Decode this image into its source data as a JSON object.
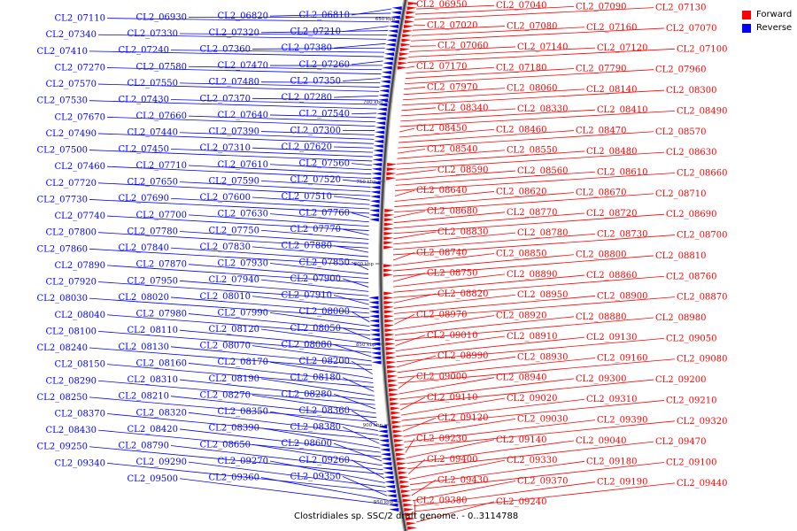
{
  "legend": {
    "forward": {
      "label": "Forward",
      "color": "#ff0000"
    },
    "reverse": {
      "label": "Reverse",
      "color": "#0000ff"
    }
  },
  "caption": "Clostridiales sp. SSC/2 draft genome. - 0..3114788",
  "ticks": [
    "650 kbp",
    "700 kbp",
    "750 kbp",
    "800 kbp",
    "850 kbp",
    "900 kbp",
    "950 kbp"
  ],
  "labels": [
    [
      "CL2_06950",
      "F"
    ],
    [
      "CL2_07040",
      "F"
    ],
    [
      "CL2_07090",
      "F"
    ],
    [
      "CL2_07130",
      "F"
    ],
    [
      "CL2_07020",
      "F"
    ],
    [
      "CL2_07080",
      "F"
    ],
    [
      "CL2_07160",
      "F"
    ],
    [
      "CL2_07070",
      "F"
    ],
    [
      "CL2_07060",
      "F"
    ],
    [
      "CL2_07140",
      "F"
    ],
    [
      "CL2_07120",
      "F"
    ],
    [
      "CL2_07100",
      "F"
    ],
    [
      "CL2_07170",
      "F"
    ],
    [
      "CL2_07180",
      "F"
    ],
    [
      "CL2_06810",
      "R"
    ],
    [
      "CL2_06820",
      "R"
    ],
    [
      "CL2_06930",
      "R"
    ],
    [
      "CL2_07110",
      "R"
    ],
    [
      "CL2_07210",
      "R"
    ],
    [
      "CL2_07320",
      "R"
    ],
    [
      "CL2_07330",
      "R"
    ],
    [
      "CL2_07340",
      "R"
    ],
    [
      "CL2_07380",
      "R"
    ],
    [
      "CL2_07360",
      "R"
    ],
    [
      "CL2_07240",
      "R"
    ],
    [
      "CL2_07410",
      "R"
    ],
    [
      "CL2_07260",
      "R"
    ],
    [
      "CL2_07470",
      "R"
    ],
    [
      "CL2_07580",
      "R"
    ],
    [
      "CL2_07270",
      "R"
    ],
    [
      "CL2_07350",
      "R"
    ],
    [
      "CL2_07480",
      "R"
    ],
    [
      "CL2_07550",
      "R"
    ],
    [
      "CL2_07570",
      "R"
    ],
    [
      "CL2_07280",
      "R"
    ],
    [
      "CL2_07370",
      "R"
    ],
    [
      "CL2_07430",
      "R"
    ],
    [
      "CL2_07530",
      "R"
    ],
    [
      "CL2_07540",
      "R"
    ],
    [
      "CL2_07640",
      "R"
    ],
    [
      "CL2_07660",
      "R"
    ],
    [
      "CL2_07670",
      "R"
    ],
    [
      "CL2_07300",
      "R"
    ],
    [
      "CL2_07390",
      "R"
    ],
    [
      "CL2_07440",
      "R"
    ],
    [
      "CL2_07490",
      "R"
    ],
    [
      "CL2_07620",
      "R"
    ],
    [
      "CL2_07310",
      "R"
    ],
    [
      "CL2_07450",
      "R"
    ],
    [
      "CL2_07500",
      "R"
    ],
    [
      "CL2_07560",
      "R"
    ],
    [
      "CL2_07610",
      "R"
    ],
    [
      "CL2_07710",
      "R"
    ],
    [
      "CL2_07460",
      "R"
    ],
    [
      "CL2_07520",
      "R"
    ],
    [
      "CL2_07590",
      "R"
    ],
    [
      "CL2_07650",
      "R"
    ],
    [
      "CL2_07720",
      "R"
    ],
    [
      "CL2_07510",
      "R"
    ],
    [
      "CL2_07600",
      "R"
    ],
    [
      "CL2_07690",
      "R"
    ],
    [
      "CL2_07730",
      "R"
    ],
    [
      "CL2_07760",
      "R"
    ],
    [
      "CL2_07630",
      "R"
    ],
    [
      "CL2_07700",
      "R"
    ],
    [
      "CL2_07740",
      "R"
    ],
    [
      "CL2_07770",
      "R"
    ],
    [
      "CL2_07790",
      "F"
    ],
    [
      "CL2_07750",
      "R"
    ],
    [
      "CL2_07780",
      "R"
    ],
    [
      "CL2_07800",
      "R"
    ],
    [
      "CL2_07880",
      "R"
    ],
    [
      "CL2_07830",
      "R"
    ],
    [
      "CL2_07840",
      "R"
    ],
    [
      "CL2_07860",
      "R"
    ],
    [
      "CL2_07850",
      "R"
    ],
    [
      "CL2_07930",
      "R"
    ],
    [
      "CL2_07870",
      "R"
    ],
    [
      "CL2_07890",
      "R"
    ],
    [
      "CL2_07900",
      "R"
    ],
    [
      "CL2_07940",
      "R"
    ],
    [
      "CL2_07950",
      "R"
    ],
    [
      "CL2_07960",
      "F"
    ],
    [
      "CL2_07920",
      "R"
    ],
    [
      "CL2_07910",
      "R"
    ],
    [
      "CL2_07970",
      "F"
    ],
    [
      "CL2_08010",
      "R"
    ],
    [
      "CL2_08020",
      "R"
    ],
    [
      "CL2_08030",
      "R"
    ],
    [
      "CL2_08000",
      "R"
    ],
    [
      "CL2_07990",
      "R"
    ],
    [
      "CL2_07980",
      "R"
    ],
    [
      "CL2_08040",
      "R"
    ],
    [
      "CL2_08050",
      "R"
    ],
    [
      "CL2_08060",
      "F"
    ],
    [
      "CL2_08120",
      "R"
    ],
    [
      "CL2_08110",
      "R"
    ],
    [
      "CL2_08100",
      "R"
    ],
    [
      "CL2_08080",
      "R"
    ],
    [
      "CL2_08070",
      "R"
    ],
    [
      "CL2_08130",
      "R"
    ],
    [
      "CL2_08140",
      "F"
    ],
    [
      "CL2_08240",
      "R"
    ],
    [
      "CL2_08200",
      "R"
    ],
    [
      "CL2_08170",
      "R"
    ],
    [
      "CL2_08160",
      "R"
    ],
    [
      "CL2_08150",
      "R"
    ],
    [
      "CL2_08180",
      "R"
    ],
    [
      "CL2_08190",
      "R"
    ],
    [
      "CL2_08310",
      "R"
    ],
    [
      "CL2_08290",
      "R"
    ],
    [
      "CL2_08280",
      "R"
    ],
    [
      "CL2_08270",
      "R"
    ],
    [
      "CL2_08210",
      "R"
    ],
    [
      "CL2_08250",
      "R"
    ],
    [
      "CL2_08300",
      "F"
    ],
    [
      "CL2_08360",
      "R"
    ],
    [
      "CL2_08350",
      "R"
    ],
    [
      "CL2_08340",
      "F"
    ],
    [
      "CL2_08320",
      "R"
    ],
    [
      "CL2_08330",
      "F"
    ],
    [
      "CL2_08370",
      "R"
    ],
    [
      "CL2_08380",
      "R"
    ],
    [
      "CL2_08410",
      "F"
    ],
    [
      "CL2_08390",
      "R"
    ],
    [
      "CL2_08490",
      "F"
    ],
    [
      "CL2_08450",
      "F"
    ],
    [
      "CL2_08460",
      "F"
    ],
    [
      "CL2_08470",
      "F"
    ],
    [
      "CL2_08570",
      "F"
    ],
    [
      "CL2_08540",
      "F"
    ],
    [
      "CL2_08550",
      "F"
    ],
    [
      "CL2_08480",
      "F"
    ],
    [
      "CL2_08420",
      "R"
    ],
    [
      "CL2_08630",
      "F"
    ],
    [
      "CL2_08590",
      "F"
    ],
    [
      "CL2_08560",
      "F"
    ],
    [
      "CL2_08430",
      "R"
    ],
    [
      "CL2_08610",
      "F"
    ],
    [
      "CL2_08660",
      "F"
    ],
    [
      "CL2_08640",
      "F"
    ],
    [
      "CL2_08620",
      "F"
    ],
    [
      "CL2_08600",
      "R"
    ],
    [
      "CL2_08670",
      "F"
    ],
    [
      "CL2_08710",
      "F"
    ],
    [
      "CL2_08680",
      "F"
    ],
    [
      "CL2_08650",
      "R"
    ],
    [
      "CL2_08770",
      "F"
    ],
    [
      "CL2_08720",
      "F"
    ],
    [
      "CL2_08690",
      "F"
    ],
    [
      "CL2_08830",
      "F"
    ],
    [
      "CL2_08780",
      "F"
    ],
    [
      "CL2_08730",
      "F"
    ],
    [
      "CL2_08700",
      "F"
    ],
    [
      "CL2_08790",
      "R"
    ],
    [
      "CL2_08740",
      "F"
    ],
    [
      "CL2_08850",
      "F"
    ],
    [
      "CL2_08800",
      "F"
    ],
    [
      "CL2_08810",
      "F"
    ],
    [
      "CL2_08750",
      "F"
    ],
    [
      "CL2_09250",
      "R"
    ],
    [
      "CL2_08890",
      "F"
    ],
    [
      "CL2_08860",
      "F"
    ],
    [
      "CL2_08760",
      "F"
    ],
    [
      "CL2_08820",
      "F"
    ],
    [
      "CL2_09260",
      "R"
    ],
    [
      "CL2_08950",
      "F"
    ],
    [
      "CL2_08900",
      "F"
    ],
    [
      "CL2_08870",
      "F"
    ],
    [
      "CL2_08970",
      "F"
    ],
    [
      "CL2_08920",
      "F"
    ],
    [
      "CL2_08880",
      "F"
    ],
    [
      "CL2_09270",
      "R"
    ],
    [
      "CL2_08980",
      "F"
    ],
    [
      "CL2_09010",
      "F"
    ],
    [
      "CL2_08910",
      "F"
    ],
    [
      "CL2_09290",
      "R"
    ],
    [
      "CL2_09130",
      "F"
    ],
    [
      "CL2_09050",
      "F"
    ],
    [
      "CL2_08990",
      "F"
    ],
    [
      "CL2_08930",
      "F"
    ],
    [
      "CL2_09340",
      "R"
    ],
    [
      "CL2_09160",
      "F"
    ],
    [
      "CL2_09080",
      "F"
    ],
    [
      "CL2_09000",
      "F"
    ],
    [
      "CL2_08940",
      "F"
    ],
    [
      "CL2_09350",
      "R"
    ],
    [
      "CL2_09300",
      "F"
    ],
    [
      "CL2_09200",
      "F"
    ],
    [
      "CL2_09110",
      "F"
    ],
    [
      "CL2_09020",
      "F"
    ],
    [
      "CL2_09310",
      "F"
    ],
    [
      "CL2_09210",
      "F"
    ],
    [
      "CL2_09120",
      "F"
    ],
    [
      "CL2_09030",
      "F"
    ],
    [
      "CL2_09360",
      "R"
    ],
    [
      "CL2_09390",
      "F"
    ],
    [
      "CL2_09320",
      "F"
    ],
    [
      "CL2_09230",
      "F"
    ],
    [
      "CL2_09140",
      "F"
    ],
    [
      "CL2_09040",
      "F"
    ],
    [
      "CL2_09500",
      "R"
    ],
    [
      "CL2_09470",
      "F"
    ],
    [
      "CL2_09400",
      "F"
    ],
    [
      "CL2_09330",
      "F"
    ],
    [
      "CL2_09180",
      "F"
    ],
    [
      "CL2_09100",
      "F"
    ],
    [
      "CL2_09430",
      "F"
    ],
    [
      "CL2_09370",
      "F"
    ],
    [
      "CL2_09190",
      "F"
    ],
    [
      "CL2_09440",
      "F"
    ],
    [
      "CL2_09380",
      "F"
    ],
    [
      "CL2_09240",
      "F"
    ]
  ]
}
